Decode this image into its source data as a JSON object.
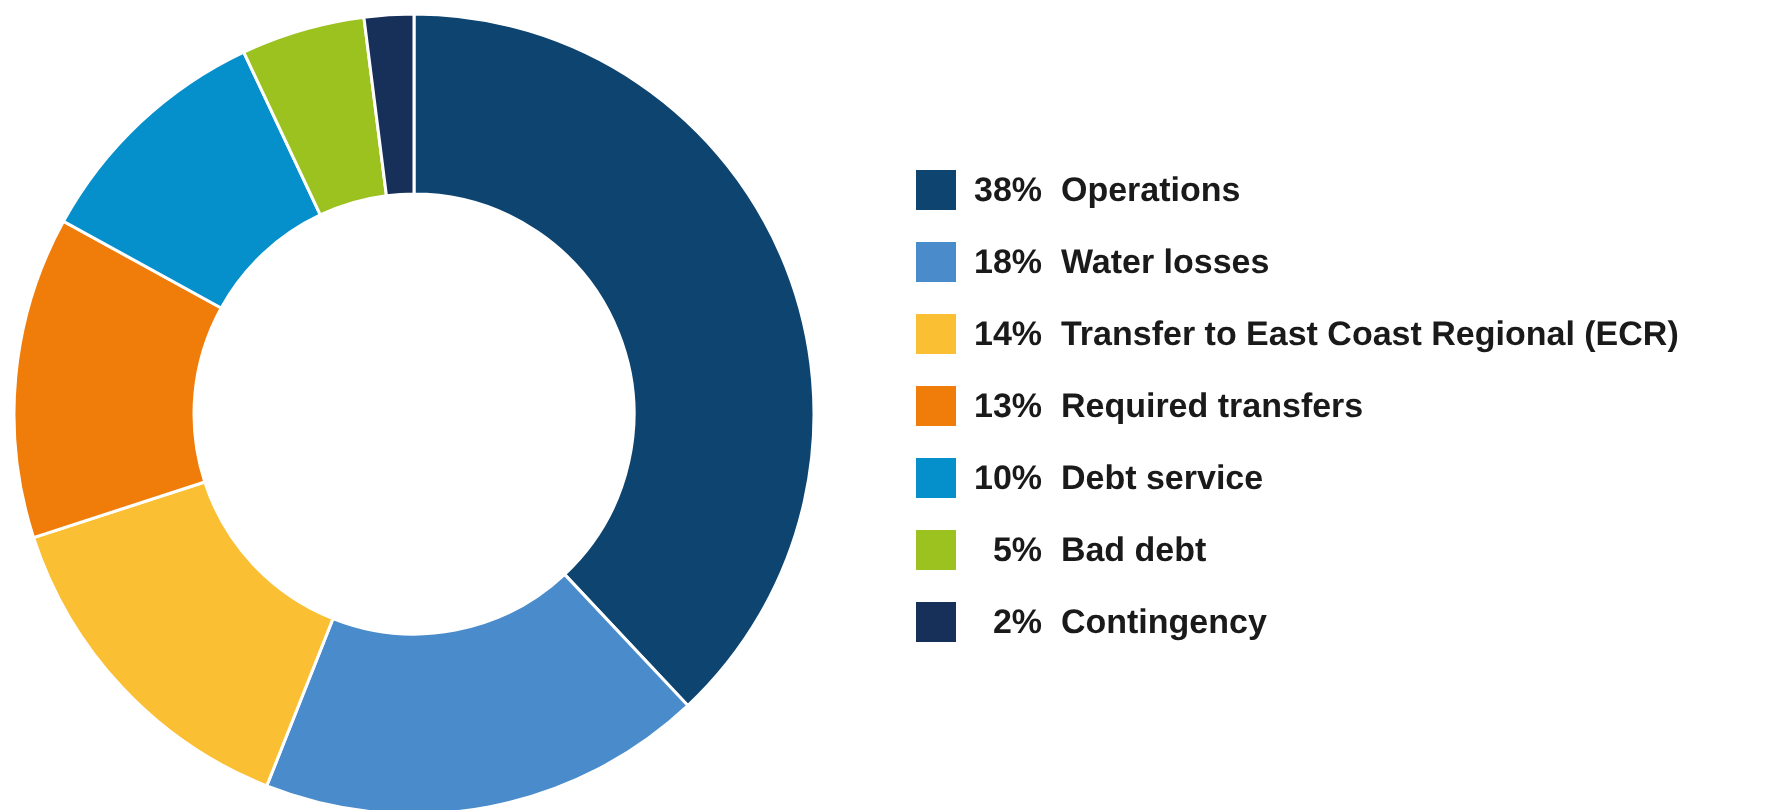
{
  "chart_data": {
    "type": "donut",
    "categories": [
      "Operations",
      "Water losses",
      "Transfer to East Coast Regional (ECR)",
      "Required transfers",
      "Debt service",
      "Bad debt",
      "Contingency"
    ],
    "values": [
      38,
      18,
      14,
      13,
      10,
      5,
      2
    ],
    "value_labels": [
      "38%",
      "18%",
      "14%",
      "13%",
      "10%",
      "5%",
      "2%"
    ],
    "colors": [
      "#0d4470",
      "#4a8ccb",
      "#fbbf33",
      "#f07c0a",
      "#0590cc",
      "#9cc21f",
      "#16305a"
    ],
    "legend": "right"
  }
}
